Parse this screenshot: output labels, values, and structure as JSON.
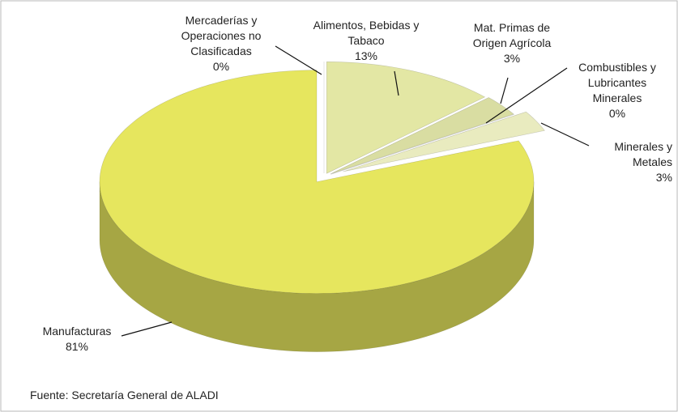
{
  "chart_data": {
    "type": "pie3d",
    "categories": [
      "Mercaderías y Operaciones no Clasificadas",
      "Alimentos, Bebidas y Tabaco",
      "Mat. Primas de Origen Agrícola",
      "Combustibles y Lubricantes Minerales",
      "Minerales y Metales",
      "Manufacturas"
    ],
    "values": [
      0,
      13,
      3,
      0,
      3,
      81
    ],
    "value_labels": [
      "0%",
      "13%",
      "3%",
      "0%",
      "3%",
      "81%"
    ],
    "colors": [
      "#f2f2e0",
      "#e3e7a4",
      "#d9dda2",
      "#c8c800",
      "#e9ebbf",
      "#e6e65e"
    ],
    "source": "Fuente: Secretaría General de ALADI"
  }
}
